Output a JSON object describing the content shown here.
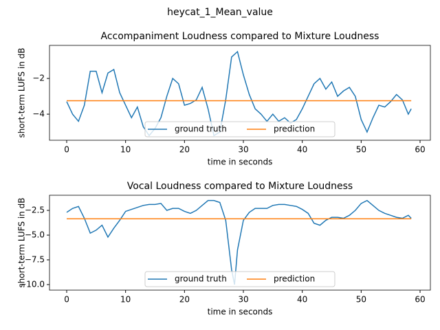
{
  "title": "heycat_1_Mean_value",
  "chart_data": [
    {
      "type": "line",
      "title": "Accompaniment Loudness compared to Mixture Loudness",
      "xlabel": "time in seconds",
      "ylabel": "short-term LUFS in dB",
      "xlim": [
        -2.92,
        61.75
      ],
      "ylim": [
        -5.46,
        -0.15
      ],
      "xticks": [
        0,
        10,
        20,
        30,
        40,
        50,
        60
      ],
      "yticks": [
        {
          "value": -4,
          "label": "−4"
        },
        {
          "value": -2,
          "label": "−2"
        }
      ],
      "legend": "lower center",
      "grid": false,
      "series": [
        {
          "name": "ground truth",
          "color": "#1f77b4",
          "x": [
            0,
            1,
            2,
            3,
            4,
            5,
            6,
            7,
            8,
            9,
            10,
            11,
            12,
            13,
            14,
            15,
            16,
            17,
            18,
            19,
            20,
            21,
            22,
            23,
            24,
            25,
            26,
            27,
            28,
            29,
            30,
            31,
            32,
            33,
            34,
            35,
            36,
            37,
            38,
            39,
            40,
            41,
            42,
            43,
            44,
            45,
            46,
            47,
            48,
            49,
            50,
            51,
            52,
            53,
            54,
            55,
            56,
            57,
            58,
            58.5
          ],
          "values": [
            -3.3,
            -4.0,
            -4.4,
            -3.5,
            -1.6,
            -1.6,
            -2.8,
            -1.7,
            -1.5,
            -2.8,
            -3.5,
            -4.2,
            -3.6,
            -4.7,
            -5.2,
            -4.8,
            -4.2,
            -3.0,
            -2.0,
            -2.3,
            -3.5,
            -3.4,
            -3.2,
            -2.5,
            -3.7,
            -5.2,
            -5.0,
            -3.2,
            -0.8,
            -0.5,
            -1.8,
            -2.9,
            -3.7,
            -4.0,
            -4.4,
            -4.0,
            -4.4,
            -4.2,
            -4.5,
            -4.3,
            -3.7,
            -3.0,
            -2.3,
            -2.0,
            -2.6,
            -2.2,
            -3.0,
            -2.7,
            -2.5,
            -3.0,
            -4.3,
            -5.0,
            -4.2,
            -3.5,
            -3.6,
            -3.3,
            -2.9,
            -3.2,
            -4.0,
            -3.7
          ]
        },
        {
          "name": "prediction",
          "color": "#ff7f0e",
          "x": [
            0,
            58.5
          ],
          "values": [
            -3.25,
            -3.25
          ]
        }
      ]
    },
    {
      "type": "line",
      "title": "Vocal Loudness compared to Mixture Loudness",
      "xlabel": "time in seconds",
      "ylabel": "short-term LUFS in dB",
      "xlim": [
        -2.92,
        61.75
      ],
      "ylim": [
        -10.56,
        -0.97
      ],
      "xticks": [
        0,
        10,
        20,
        30,
        40,
        50,
        60
      ],
      "yticks": [
        {
          "value": -10,
          "label": "−10.0"
        },
        {
          "value": -7.5,
          "label": "−7.5"
        },
        {
          "value": -5,
          "label": "−5.0"
        },
        {
          "value": -2.5,
          "label": "−2.5"
        }
      ],
      "legend": "lower center",
      "grid": false,
      "series": [
        {
          "name": "ground truth",
          "color": "#1f77b4",
          "x": [
            0,
            1,
            2,
            3,
            4,
            5,
            6,
            7,
            8,
            9,
            10,
            11,
            12,
            13,
            14,
            15,
            16,
            17,
            18,
            19,
            20,
            21,
            22,
            23,
            24,
            25,
            26,
            27,
            28,
            28.5,
            29,
            30,
            31,
            32,
            33,
            34,
            35,
            36,
            37,
            38,
            39,
            40,
            41,
            42,
            43,
            44,
            45,
            46,
            47,
            48,
            49,
            50,
            51,
            52,
            53,
            54,
            55,
            56,
            57,
            58,
            58.5
          ],
          "values": [
            -2.7,
            -2.3,
            -2.1,
            -3.3,
            -4.8,
            -4.5,
            -4.0,
            -5.2,
            -4.3,
            -3.5,
            -2.6,
            -2.4,
            -2.2,
            -2.0,
            -1.9,
            -1.9,
            -1.8,
            -2.5,
            -2.3,
            -2.3,
            -2.6,
            -2.8,
            -2.5,
            -2.0,
            -1.5,
            -1.5,
            -1.7,
            -3.5,
            -8.5,
            -10.0,
            -6.5,
            -3.5,
            -2.7,
            -2.3,
            -2.3,
            -2.3,
            -2.0,
            -1.9,
            -1.9,
            -2.0,
            -2.1,
            -2.4,
            -2.8,
            -3.8,
            -4.0,
            -3.5,
            -3.2,
            -3.2,
            -3.3,
            -3.0,
            -2.5,
            -1.8,
            -1.5,
            -2.0,
            -2.5,
            -2.8,
            -3.0,
            -3.2,
            -3.3,
            -3.0,
            -3.3
          ]
        },
        {
          "name": "prediction",
          "color": "#ff7f0e",
          "x": [
            0,
            58.5
          ],
          "values": [
            -3.35,
            -3.35
          ]
        }
      ]
    }
  ]
}
